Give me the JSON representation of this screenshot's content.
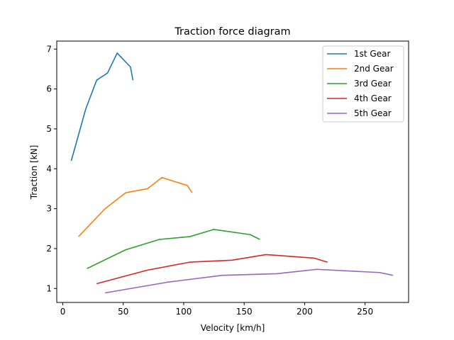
{
  "chart_data": {
    "type": "line",
    "title": "Traction force diagram",
    "xlabel": "Velocity [km/h]",
    "ylabel": "Traction [kN]",
    "xlim": [
      -5,
      286
    ],
    "ylim": [
      0.65,
      7.2
    ],
    "xticks": [
      0,
      50,
      100,
      150,
      200,
      250
    ],
    "yticks": [
      1,
      2,
      3,
      4,
      5,
      6,
      7
    ],
    "grid": false,
    "legend_position": "top-right",
    "series": [
      {
        "name": "1st Gear",
        "color": "#1f77b4",
        "x": [
          7,
          19,
          28,
          37,
          45,
          56,
          58
        ],
        "y": [
          4.2,
          5.5,
          6.22,
          6.4,
          6.9,
          6.55,
          6.22
        ]
      },
      {
        "name": "2nd Gear",
        "color": "#ff7f0e",
        "x": [
          13,
          35,
          52,
          70,
          82,
          103,
          107
        ],
        "y": [
          2.3,
          3.0,
          3.4,
          3.5,
          3.78,
          3.58,
          3.4
        ]
      },
      {
        "name": "3rd Gear",
        "color": "#2ca02c",
        "x": [
          20,
          52,
          80,
          105,
          125,
          155,
          163
        ],
        "y": [
          1.5,
          1.97,
          2.23,
          2.3,
          2.48,
          2.35,
          2.23
        ]
      },
      {
        "name": "4th Gear",
        "color": "#d62728",
        "x": [
          28,
          70,
          105,
          140,
          168,
          208,
          219
        ],
        "y": [
          1.12,
          1.46,
          1.66,
          1.71,
          1.85,
          1.76,
          1.66
        ]
      },
      {
        "name": "5th Gear",
        "color": "#9467bd",
        "x": [
          35,
          87,
          132,
          177,
          210,
          262,
          273
        ],
        "y": [
          0.89,
          1.16,
          1.33,
          1.37,
          1.48,
          1.4,
          1.33
        ]
      }
    ]
  }
}
